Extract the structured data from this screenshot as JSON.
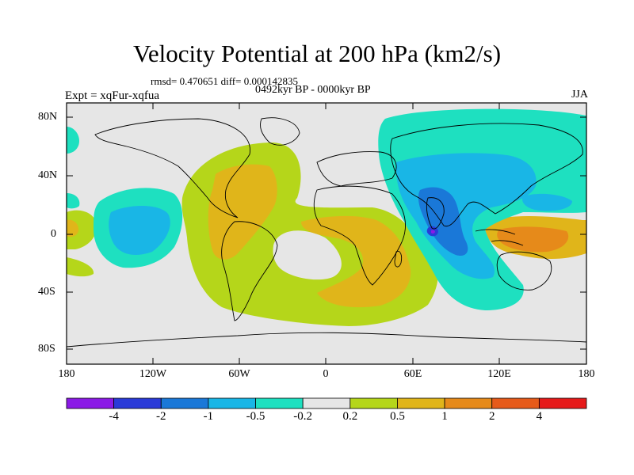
{
  "title": "Velocity Potential at 200 hPa (km2/s)",
  "stats": "rmsd= 0.470651 diff= 0.000142835",
  "experiment": "Expt = xqFur-xqfua",
  "period": "0492kyr BP - 0000kyr BP",
  "season": "JJA",
  "lat_ticks": [
    "80N",
    "40N",
    "0",
    "40S",
    "80S"
  ],
  "lon_ticks": [
    "180",
    "120W",
    "60W",
    "0",
    "60E",
    "120E",
    "180"
  ],
  "colorbar": {
    "labels": [
      "-4",
      "-2",
      "-1",
      "-0.5",
      "-0.2",
      "0.2",
      "0.5",
      "1",
      "2",
      "4"
    ],
    "colors": [
      "#8b1ae6",
      "#2a3ad8",
      "#1a78d8",
      "#19b6e6",
      "#1ee0c0",
      "#e6e6e6",
      "#b5d61a",
      "#e0b51a",
      "#e68a1a",
      "#e65a1a",
      "#e61a1a"
    ]
  },
  "field_colors": {
    "neutral": "#e6e6e6",
    "pos_weak": "#b5d61a",
    "pos_mid": "#e0b51a",
    "pos_strong": "#e68a1a",
    "neg_weak": "#1ee0c0",
    "neg_mid": "#19b6e6",
    "neg_strong": "#1a78d8",
    "neg_core": "#2a3ad8",
    "neg_extreme": "#8b1ae6"
  }
}
